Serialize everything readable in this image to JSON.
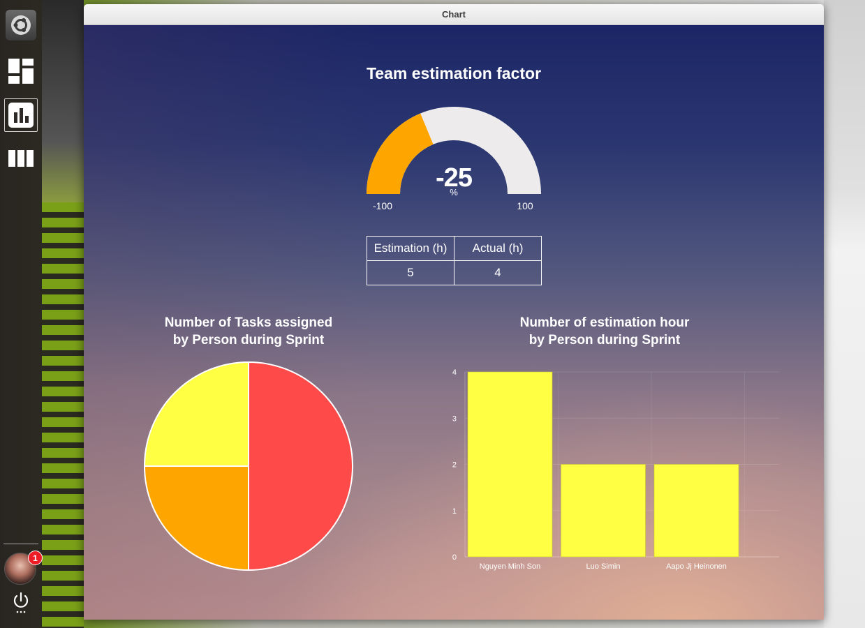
{
  "window": {
    "title": "Chart"
  },
  "launcher": {
    "items": [
      {
        "name": "ubuntu-logo-icon"
      },
      {
        "name": "dashboard-icon"
      },
      {
        "name": "bar-chart-icon",
        "active": true
      },
      {
        "name": "columns-icon"
      }
    ],
    "notification_count": "1"
  },
  "gauge": {
    "title": "Team estimation factor",
    "value": "-25",
    "unit": "%",
    "min_label": "-100",
    "max_label": "100",
    "min": -100,
    "max": 100,
    "current": -25,
    "fill_color": "#FFA500",
    "track_color": "#EDEBEC"
  },
  "estimation_table": {
    "headers": [
      "Estimation (h)",
      "Actual (h)"
    ],
    "values": [
      "5",
      "4"
    ]
  },
  "pie_chart": {
    "title_line1": "Number of Tasks assigned",
    "title_line2": "by Person during Sprint"
  },
  "bar_chart": {
    "title_line1": "Number of estimation hour",
    "title_line2": "by Person during Sprint"
  },
  "chart_data": [
    {
      "type": "gauge",
      "title": "Team estimation factor",
      "value": -25,
      "unit": "%",
      "range": [
        -100,
        100
      ]
    },
    {
      "type": "pie",
      "title": "Number of Tasks assigned by Person during Sprint",
      "slices": [
        {
          "label": "Nguyen Minh Son",
          "value": 2,
          "color": "#FF4A4A"
        },
        {
          "label": "Luo Simin",
          "value": 1,
          "color": "#FFA500"
        },
        {
          "label": "Aapo Jj Heinonen",
          "value": 1,
          "color": "#FFFF44"
        }
      ]
    },
    {
      "type": "bar",
      "title": "Number of estimation hour by Person during Sprint",
      "categories": [
        "Nguyen Minh Son",
        "Luo Simin",
        "Aapo Jj Heinonen"
      ],
      "values": [
        4,
        2,
        2
      ],
      "ylim": [
        0,
        4
      ],
      "yticks": [
        "0",
        "1",
        "2",
        "3",
        "4"
      ],
      "color": "#FFFF44",
      "grid": true,
      "xlabel": "",
      "ylabel": ""
    }
  ]
}
